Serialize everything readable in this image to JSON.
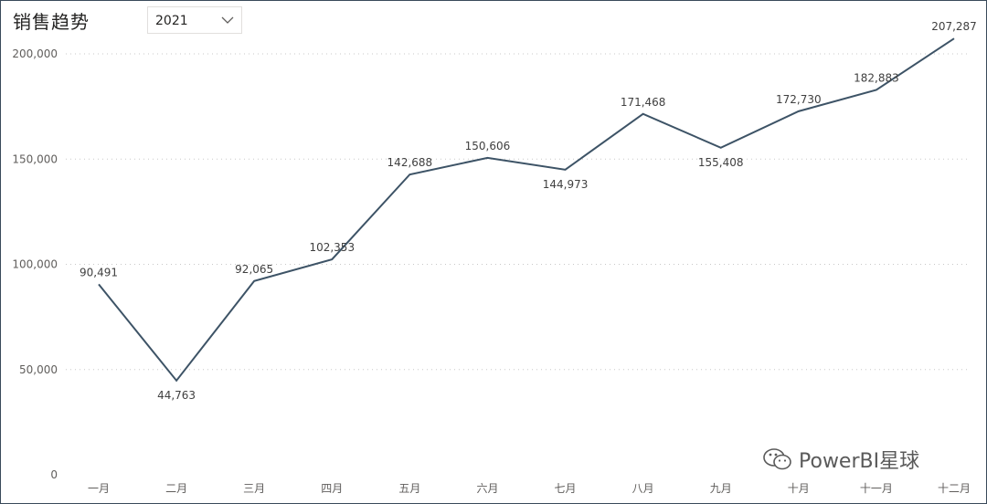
{
  "header": {
    "title": "销售趋势"
  },
  "slicer": {
    "selected_value": "2021"
  },
  "watermark": {
    "text": "PowerBI星球",
    "icon": "wechat-icon"
  },
  "colors": {
    "line": "#3d5366",
    "gridline": "#c8c8c8",
    "frame": "#3a4a5a"
  },
  "chart_data": {
    "type": "line",
    "title": "销售趋势",
    "xlabel": "",
    "ylabel": "",
    "categories": [
      "一月",
      "二月",
      "三月",
      "四月",
      "五月",
      "六月",
      "七月",
      "八月",
      "九月",
      "十月",
      "十一月",
      "十二月"
    ],
    "values": [
      90491,
      44763,
      92065,
      102353,
      142688,
      150606,
      144973,
      171468,
      155408,
      172730,
      182883,
      207287
    ],
    "data_labels": [
      "90,491",
      "44,763",
      "92,065",
      "102,353",
      "142,688",
      "150,606",
      "144,973",
      "171,468",
      "155,408",
      "172,730",
      "182,883",
      "207,287"
    ],
    "y_ticks": [
      0,
      50000,
      100000,
      150000,
      200000
    ],
    "y_tick_labels": [
      "0",
      "50,000",
      "100,000",
      "150,000",
      "200,000"
    ],
    "ylim": [
      0,
      200000
    ],
    "grid": true,
    "legend": "none"
  }
}
